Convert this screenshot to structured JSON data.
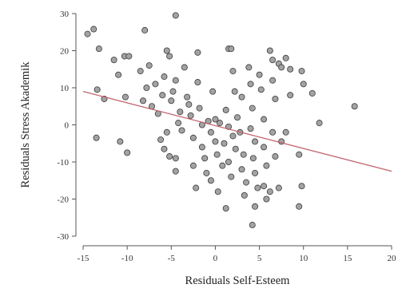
{
  "chart_data": {
    "type": "scatter",
    "xlabel": "Residuals Self-Esteem",
    "ylabel": "Residuals Stress Akademik",
    "xlim": [
      -15,
      20
    ],
    "ylim": [
      -30,
      30
    ],
    "xticks": [
      -15,
      -10,
      -5,
      0,
      5,
      10,
      15,
      20
    ],
    "yticks": [
      -30,
      -20,
      -10,
      0,
      10,
      20,
      30
    ],
    "grid": false,
    "colors": {
      "point_fill": "#a3a3a3",
      "point_stroke": "#3a3a3a",
      "regression_line": "#c2646e",
      "axis": "#555555"
    },
    "regression_line": {
      "x": [
        -15,
        20
      ],
      "y": [
        9,
        -12.5
      ]
    },
    "points": [
      {
        "x": -14.5,
        "y": 24.5
      },
      {
        "x": -13.8,
        "y": 25.8
      },
      {
        "x": -13.2,
        "y": 20.5
      },
      {
        "x": -12.6,
        "y": 7
      },
      {
        "x": -13.4,
        "y": 9.5
      },
      {
        "x": -13.5,
        "y": -3.5
      },
      {
        "x": -11.5,
        "y": 17.5
      },
      {
        "x": -11,
        "y": 13.5
      },
      {
        "x": -10.3,
        "y": 18.5
      },
      {
        "x": -9.8,
        "y": 18.5
      },
      {
        "x": -10.2,
        "y": 7.5
      },
      {
        "x": -10.8,
        "y": -4.5
      },
      {
        "x": -10,
        "y": -7.5
      },
      {
        "x": -8.5,
        "y": 14.5
      },
      {
        "x": -8,
        "y": 25.5
      },
      {
        "x": -7.5,
        "y": 16
      },
      {
        "x": -7.8,
        "y": 10
      },
      {
        "x": -8.2,
        "y": 6.5
      },
      {
        "x": -7.2,
        "y": 5
      },
      {
        "x": -6.8,
        "y": 11
      },
      {
        "x": -6.5,
        "y": 3
      },
      {
        "x": -6,
        "y": 8
      },
      {
        "x": -5.8,
        "y": 13
      },
      {
        "x": -5.5,
        "y": 20
      },
      {
        "x": -5.2,
        "y": 18.5
      },
      {
        "x": -5,
        "y": 6.5
      },
      {
        "x": -5.5,
        "y": -2
      },
      {
        "x": -6.2,
        "y": -4
      },
      {
        "x": -5.8,
        "y": -6.5
      },
      {
        "x": -4.5,
        "y": 29.5
      },
      {
        "x": -4.5,
        "y": 12
      },
      {
        "x": -4.8,
        "y": 9
      },
      {
        "x": -4,
        "y": 3.5
      },
      {
        "x": -4.2,
        "y": 0.5
      },
      {
        "x": -3.8,
        "y": -1.5
      },
      {
        "x": -4.5,
        "y": -9
      },
      {
        "x": -4.5,
        "y": -12.5
      },
      {
        "x": -5.2,
        "y": -8.5
      },
      {
        "x": -3.5,
        "y": 15.5
      },
      {
        "x": -3.2,
        "y": 7.5
      },
      {
        "x": -3,
        "y": 5.5
      },
      {
        "x": -2.8,
        "y": 2.5
      },
      {
        "x": -2.5,
        "y": -3.5
      },
      {
        "x": -2.5,
        "y": -11
      },
      {
        "x": -2.2,
        "y": -17
      },
      {
        "x": -2,
        "y": 19.5
      },
      {
        "x": -2,
        "y": 11.5
      },
      {
        "x": -1.8,
        "y": 4.5
      },
      {
        "x": -1.5,
        "y": 0
      },
      {
        "x": -1.5,
        "y": -6
      },
      {
        "x": -1.2,
        "y": -9
      },
      {
        "x": -1,
        "y": -13
      },
      {
        "x": -0.8,
        "y": 1
      },
      {
        "x": -0.5,
        "y": -2
      },
      {
        "x": -0.5,
        "y": -15
      },
      {
        "x": -0.3,
        "y": 9
      },
      {
        "x": 0,
        "y": 1.5
      },
      {
        "x": 0,
        "y": -4.5
      },
      {
        "x": 0.2,
        "y": -8
      },
      {
        "x": 0.3,
        "y": -18
      },
      {
        "x": 0.5,
        "y": 0.5
      },
      {
        "x": 0.8,
        "y": -11
      },
      {
        "x": 1,
        "y": -5
      },
      {
        "x": 1.2,
        "y": 4
      },
      {
        "x": 1.5,
        "y": 20.5
      },
      {
        "x": 1.8,
        "y": 20.5
      },
      {
        "x": 2,
        "y": 14.5
      },
      {
        "x": 2.2,
        "y": 9
      },
      {
        "x": 1.5,
        "y": -0.5
      },
      {
        "x": 2,
        "y": -3
      },
      {
        "x": 2.3,
        "y": -6.5
      },
      {
        "x": 1.5,
        "y": -10
      },
      {
        "x": 1.8,
        "y": -14
      },
      {
        "x": 1.2,
        "y": -22.5
      },
      {
        "x": 2.5,
        "y": 2
      },
      {
        "x": 2.8,
        "y": -2
      },
      {
        "x": 3,
        "y": 7.5
      },
      {
        "x": 3.2,
        "y": -8
      },
      {
        "x": 3,
        "y": -12
      },
      {
        "x": 3.5,
        "y": -15.5
      },
      {
        "x": 3.3,
        "y": -19
      },
      {
        "x": 3.8,
        "y": 15.5
      },
      {
        "x": 4,
        "y": 11
      },
      {
        "x": 4.2,
        "y": 4.5
      },
      {
        "x": 4,
        "y": -1
      },
      {
        "x": 4.5,
        "y": -4.5
      },
      {
        "x": 4.3,
        "y": -9
      },
      {
        "x": 4.5,
        "y": -13
      },
      {
        "x": 4.8,
        "y": -17
      },
      {
        "x": 4.5,
        "y": -22
      },
      {
        "x": 4.2,
        "y": -27
      },
      {
        "x": 5,
        "y": 13.5
      },
      {
        "x": 5.2,
        "y": 9.5
      },
      {
        "x": 5.5,
        "y": 1.5
      },
      {
        "x": 5.5,
        "y": -6
      },
      {
        "x": 5.8,
        "y": -11
      },
      {
        "x": 5.5,
        "y": -16.5
      },
      {
        "x": 5.8,
        "y": -20
      },
      {
        "x": 6.2,
        "y": 20
      },
      {
        "x": 6.5,
        "y": 17.5
      },
      {
        "x": 6.5,
        "y": 12
      },
      {
        "x": 6.8,
        "y": 7
      },
      {
        "x": 6.5,
        "y": -2
      },
      {
        "x": 6.8,
        "y": -8.5
      },
      {
        "x": 6.2,
        "y": -18
      },
      {
        "x": 7.2,
        "y": 16.5
      },
      {
        "x": 7.5,
        "y": 15.5
      },
      {
        "x": 7.5,
        "y": -4.5
      },
      {
        "x": 7.2,
        "y": -17
      },
      {
        "x": 8,
        "y": 18
      },
      {
        "x": 8.5,
        "y": 15
      },
      {
        "x": 8.5,
        "y": 8
      },
      {
        "x": 8,
        "y": -2
      },
      {
        "x": 9.8,
        "y": 14.5
      },
      {
        "x": 10,
        "y": 11
      },
      {
        "x": 9.5,
        "y": -8
      },
      {
        "x": 9.8,
        "y": -16.5
      },
      {
        "x": 9.5,
        "y": -22
      },
      {
        "x": 11,
        "y": 8.5
      },
      {
        "x": 11.8,
        "y": 0.5
      },
      {
        "x": 15.8,
        "y": 5
      }
    ]
  }
}
